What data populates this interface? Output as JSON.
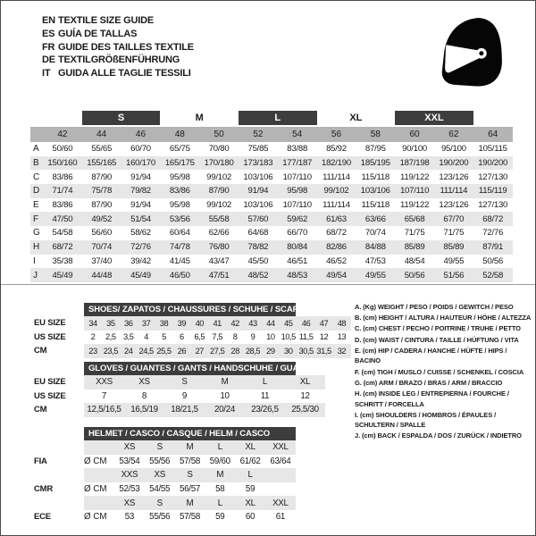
{
  "header": {
    "languages": [
      {
        "code": "EN",
        "title": "TEXTILE SIZE GUIDE"
      },
      {
        "code": "ES",
        "title": "GUÍA DE TALLAS"
      },
      {
        "code": "FR",
        "title": "GUIDE DES TAILLES TEXTILE"
      },
      {
        "code": "DE",
        "title": "TEXTILGRÖßENFÜHRUNG"
      },
      {
        "code": "IT",
        "title": "GUIDA ALLE TAGLIE TESSILI"
      }
    ],
    "icon": "full-face-helmet"
  },
  "colors": {
    "dark_bar": "#3d3d3d",
    "header_gray": "#b4b4b4",
    "stripe": "#e7e7e7"
  },
  "main_table": {
    "size_groups": [
      {
        "label": "S",
        "filled": true
      },
      {
        "label": "M",
        "filled": false
      },
      {
        "label": "L",
        "filled": true
      },
      {
        "label": "XL",
        "filled": false
      },
      {
        "label": "XXL",
        "filled": true
      }
    ],
    "columns": [
      "42",
      "44",
      "46",
      "48",
      "50",
      "52",
      "54",
      "56",
      "58",
      "60",
      "62",
      "64"
    ],
    "rows": [
      {
        "letter": "A",
        "values": [
          "50/60",
          "55/65",
          "60/70",
          "65/75",
          "70/80",
          "75/85",
          "83/88",
          "85/92",
          "87/95",
          "90/100",
          "95/100",
          "105/115"
        ]
      },
      {
        "letter": "B",
        "values": [
          "150/160",
          "155/165",
          "160/170",
          "165/175",
          "170/180",
          "173/183",
          "177/187",
          "182/190",
          "185/195",
          "187/198",
          "190/200",
          "190/200"
        ]
      },
      {
        "letter": "C",
        "values": [
          "83/86",
          "87/90",
          "91/94",
          "95/98",
          "99/102",
          "103/106",
          "107/110",
          "111/114",
          "115/118",
          "119/122",
          "123/126",
          "127/130"
        ]
      },
      {
        "letter": "D",
        "values": [
          "71/74",
          "75/78",
          "79/82",
          "83/86",
          "87/90",
          "91/94",
          "95/98",
          "99/102",
          "103/106",
          "107/110",
          "111/114",
          "115/119"
        ]
      },
      {
        "letter": "E",
        "values": [
          "83/86",
          "87/90",
          "91/94",
          "95/98",
          "99/102",
          "103/106",
          "107/110",
          "111/114",
          "115/118",
          "119/122",
          "123/126",
          "127/130"
        ]
      },
      {
        "letter": "F",
        "values": [
          "47/50",
          "49/52",
          "51/54",
          "53/56",
          "55/58",
          "57/60",
          "59/62",
          "61/63",
          "63/66",
          "65/68",
          "67/70",
          "68/72"
        ]
      },
      {
        "letter": "G",
        "values": [
          "54/58",
          "56/60",
          "58/62",
          "60/64",
          "62/66",
          "64/68",
          "66/70",
          "68/72",
          "70/74",
          "71/75",
          "71/75",
          "72/76"
        ]
      },
      {
        "letter": "H",
        "values": [
          "68/72",
          "70/74",
          "72/76",
          "74/78",
          "76/80",
          "78/82",
          "80/84",
          "82/86",
          "84/88",
          "85/89",
          "85/89",
          "87/91"
        ]
      },
      {
        "letter": "I",
        "values": [
          "35/38",
          "37/40",
          "39/42",
          "41/45",
          "43/47",
          "45/50",
          "46/51",
          "46/52",
          "47/53",
          "48/54",
          "49/55",
          "50/56"
        ]
      },
      {
        "letter": "J",
        "values": [
          "45/49",
          "44/48",
          "45/49",
          "46/50",
          "47/51",
          "48/52",
          "48/53",
          "49/54",
          "49/55",
          "50/56",
          "51/56",
          "52/58"
        ]
      }
    ]
  },
  "shoes_table": {
    "title": "SHOES/ ZAPATOS / CHAUSSURES / SCHUHE / SCARPE",
    "rows": [
      {
        "label": "EU SIZE",
        "values": [
          "34",
          "35",
          "36",
          "37",
          "38",
          "39",
          "40",
          "41",
          "42",
          "43",
          "44",
          "45",
          "46",
          "47",
          "48"
        ]
      },
      {
        "label": "US SIZE",
        "values": [
          "2",
          "2,5",
          "3,5",
          "4",
          "5",
          "6",
          "6,5",
          "7,5",
          "8",
          "9",
          "10",
          "10,5",
          "11,5",
          "12",
          "13"
        ]
      },
      {
        "label": "CM",
        "values": [
          "23",
          "23,5",
          "24",
          "24,5",
          "25,5",
          "26",
          "27",
          "27,5",
          "28",
          "28,5",
          "29",
          "30",
          "30,5",
          "31,5",
          "32"
        ]
      }
    ]
  },
  "gloves_table": {
    "title": "GLOVES / GUANTES / GANTS / HANDSCHUHE / GUANTI",
    "rows": [
      {
        "label": "EU SIZE",
        "values": [
          "XXS",
          "XS",
          "S",
          "M",
          "L",
          "XL"
        ]
      },
      {
        "label": "US SIZE",
        "values": [
          "7",
          "8",
          "9",
          "10",
          "11",
          "12"
        ]
      },
      {
        "label": "CM",
        "values": [
          "12,5/16,5",
          "16,5/19",
          "18/21,5",
          "20/24",
          "23/26,5",
          "25,5/30"
        ]
      }
    ]
  },
  "helmet_table": {
    "title": "HELMET / CASCO / CASQUE / HELM / CASCO",
    "sections": [
      {
        "label": "FIA",
        "unit": "Ø CM",
        "sizes": [
          "XS",
          "S",
          "M",
          "L",
          "XL",
          "XXL"
        ],
        "values": [
          "53/54",
          "55/56",
          "57/58",
          "59/60",
          "61/62",
          "63/64"
        ]
      },
      {
        "label": "CMR",
        "unit": "Ø CM",
        "sizes": [
          "XXS",
          "XS",
          "S",
          "M",
          "L",
          ""
        ],
        "values": [
          "52/53",
          "54/55",
          "56/57",
          "58",
          "59",
          ""
        ]
      },
      {
        "label": "ECE",
        "unit": "Ø CM",
        "sizes": [
          "XS",
          "S",
          "M",
          "L",
          "XL",
          "XXL"
        ],
        "values": [
          "53",
          "55/56",
          "57/58",
          "59",
          "60",
          "61"
        ]
      }
    ]
  },
  "legend": {
    "items": [
      "A. (Kg) WEIGHT / PESO / POIDS / GEWITCH / PESO",
      "B. (cm) HEIGHT / ALTURA / HAUTEUR / HÖHE / ALTEZZA",
      "C. (cm) CHEST / PECHO / POITRINE / TRUHE / PETTO",
      "D. (cm) WAIST / CINTURA / TAILLE / HÜFTUNG / VITA",
      "E. (cm) HIP / CADERA / HANCHE / HÜFTE / HIPS /  BACINO",
      "F. (cm) TIGH / MUSLO / CUISSE / SCHENKEL / COSCIA",
      "G. (cm) ARM  / BRAZO / BRAS / ARM / BRACCIO",
      "H. (cm) INSIDE LEG / ENTREPIERNA / FOURCHE / SCHRITT / FORCELLA",
      "I.  (cm) SHOULDERS / HOMBROS / ÉPAULES / SCHULTERN / SPALLE",
      "J. (cm) BACK / ESPALDA / DOS / ZURÜCK / INDIETRO"
    ]
  }
}
